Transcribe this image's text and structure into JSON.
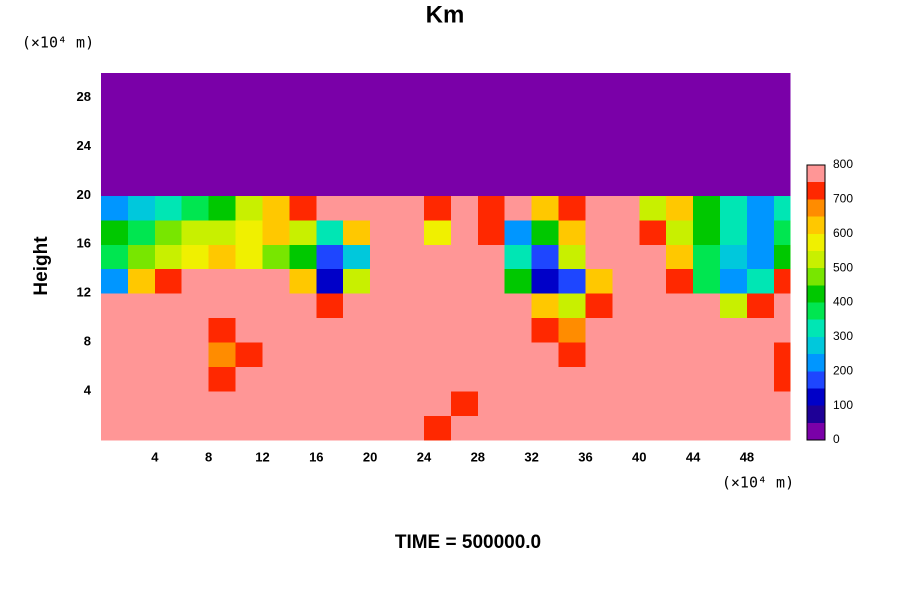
{
  "chart_data": {
    "type": "heatmap",
    "title": "Km",
    "x_unit_label": "(×10⁴ m)",
    "y_unit_label": "(×10⁴ m)",
    "y_label": "Height",
    "footer": "TIME = 500000.0",
    "xlim": [
      0,
      51.2
    ],
    "ylim": [
      0,
      30
    ],
    "xticks": [
      4,
      8,
      12,
      16,
      20,
      24,
      28,
      32,
      36,
      40,
      44,
      48
    ],
    "yticks": [
      4,
      8,
      12,
      16,
      20,
      24,
      28
    ],
    "x_edges": [
      0,
      2,
      4,
      6,
      8,
      10,
      12,
      14,
      16,
      18,
      20,
      22,
      24,
      26,
      28,
      30,
      32,
      34,
      36,
      38,
      40,
      42,
      44,
      46,
      48,
      50,
      51.2
    ],
    "y_edges": [
      0,
      2,
      4,
      6,
      8,
      10,
      12,
      14,
      16,
      18,
      20,
      22,
      24,
      26,
      28,
      30
    ],
    "z": [
      [
        800,
        800,
        800,
        800,
        800,
        800,
        800,
        800,
        800,
        800,
        800,
        800,
        700,
        800,
        800,
        800,
        800,
        800,
        800,
        800,
        800,
        800,
        800,
        800,
        800,
        800
      ],
      [
        800,
        800,
        800,
        800,
        800,
        800,
        800,
        800,
        800,
        800,
        800,
        800,
        750,
        700,
        750,
        800,
        800,
        750,
        800,
        800,
        800,
        800,
        800,
        800,
        800,
        800
      ],
      [
        800,
        800,
        800,
        800,
        700,
        800,
        800,
        800,
        800,
        800,
        750,
        800,
        800,
        800,
        800,
        800,
        800,
        800,
        800,
        800,
        800,
        800,
        800,
        800,
        800,
        700
      ],
      [
        800,
        800,
        800,
        800,
        650,
        700,
        800,
        800,
        800,
        800,
        800,
        800,
        800,
        800,
        800,
        800,
        800,
        700,
        800,
        800,
        800,
        800,
        800,
        800,
        800,
        700
      ],
      [
        800,
        800,
        800,
        800,
        700,
        800,
        800,
        800,
        800,
        800,
        800,
        800,
        800,
        800,
        800,
        800,
        700,
        650,
        750,
        800,
        800,
        800,
        800,
        800,
        750,
        800
      ],
      [
        750,
        750,
        800,
        800,
        800,
        800,
        800,
        800,
        700,
        800,
        800,
        800,
        800,
        800,
        800,
        800,
        600,
        500,
        700,
        800,
        800,
        800,
        800,
        500,
        700,
        800
      ],
      [
        200,
        600,
        700,
        750,
        800,
        800,
        800,
        600,
        100,
        500,
        800,
        800,
        800,
        800,
        800,
        400,
        100,
        150,
        600,
        800,
        800,
        700,
        350,
        200,
        300,
        700
      ],
      [
        350,
        450,
        500,
        550,
        600,
        550,
        450,
        400,
        150,
        250,
        800,
        800,
        800,
        800,
        750,
        300,
        150,
        500,
        800,
        800,
        800,
        600,
        350,
        250,
        200,
        400
      ],
      [
        400,
        350,
        450,
        500,
        500,
        550,
        600,
        500,
        300,
        600,
        800,
        800,
        550,
        800,
        700,
        200,
        400,
        600,
        800,
        800,
        700,
        500,
        400,
        300,
        200,
        350
      ],
      [
        200,
        250,
        300,
        350,
        400,
        500,
        600,
        700,
        800,
        750,
        800,
        800,
        700,
        800,
        700,
        800,
        600,
        700,
        800,
        750,
        500,
        600,
        400,
        300,
        200,
        300
      ],
      [
        0,
        0,
        0,
        0,
        0,
        0,
        0,
        0,
        0,
        0,
        0,
        0,
        0,
        0,
        0,
        0,
        0,
        0,
        0,
        0,
        0,
        0,
        0,
        0,
        0,
        0
      ],
      [
        0,
        0,
        0,
        0,
        0,
        0,
        0,
        0,
        0,
        0,
        0,
        0,
        0,
        0,
        0,
        0,
        0,
        0,
        0,
        0,
        0,
        0,
        0,
        0,
        0,
        0
      ],
      [
        0,
        0,
        0,
        0,
        0,
        0,
        0,
        0,
        0,
        0,
        0,
        0,
        0,
        0,
        0,
        0,
        0,
        0,
        0,
        0,
        0,
        0,
        0,
        0,
        0,
        0
      ],
      [
        0,
        0,
        0,
        0,
        0,
        0,
        0,
        0,
        0,
        0,
        0,
        0,
        0,
        0,
        0,
        0,
        0,
        0,
        0,
        0,
        0,
        0,
        0,
        0,
        0,
        0
      ],
      [
        0,
        0,
        0,
        0,
        0,
        0,
        0,
        0,
        0,
        0,
        0,
        0,
        0,
        0,
        0,
        0,
        0,
        0,
        0,
        0,
        0,
        0,
        0,
        0,
        0,
        0
      ]
    ],
    "colorbar": {
      "range": [
        0,
        800
      ],
      "ticks": [
        0,
        100,
        200,
        300,
        400,
        500,
        600,
        700,
        800
      ],
      "levels": [
        0,
        50,
        100,
        150,
        200,
        250,
        300,
        350,
        400,
        450,
        500,
        550,
        600,
        650,
        700,
        750,
        800
      ],
      "colors": [
        "#7a00a8",
        "#1e0096",
        "#0000c8",
        "#1e46ff",
        "#0096ff",
        "#00c8dc",
        "#00e6b4",
        "#00e650",
        "#00c800",
        "#78e600",
        "#c8f000",
        "#f0f000",
        "#ffc800",
        "#ff8c00",
        "#ff2800",
        "#ff9696"
      ]
    }
  }
}
